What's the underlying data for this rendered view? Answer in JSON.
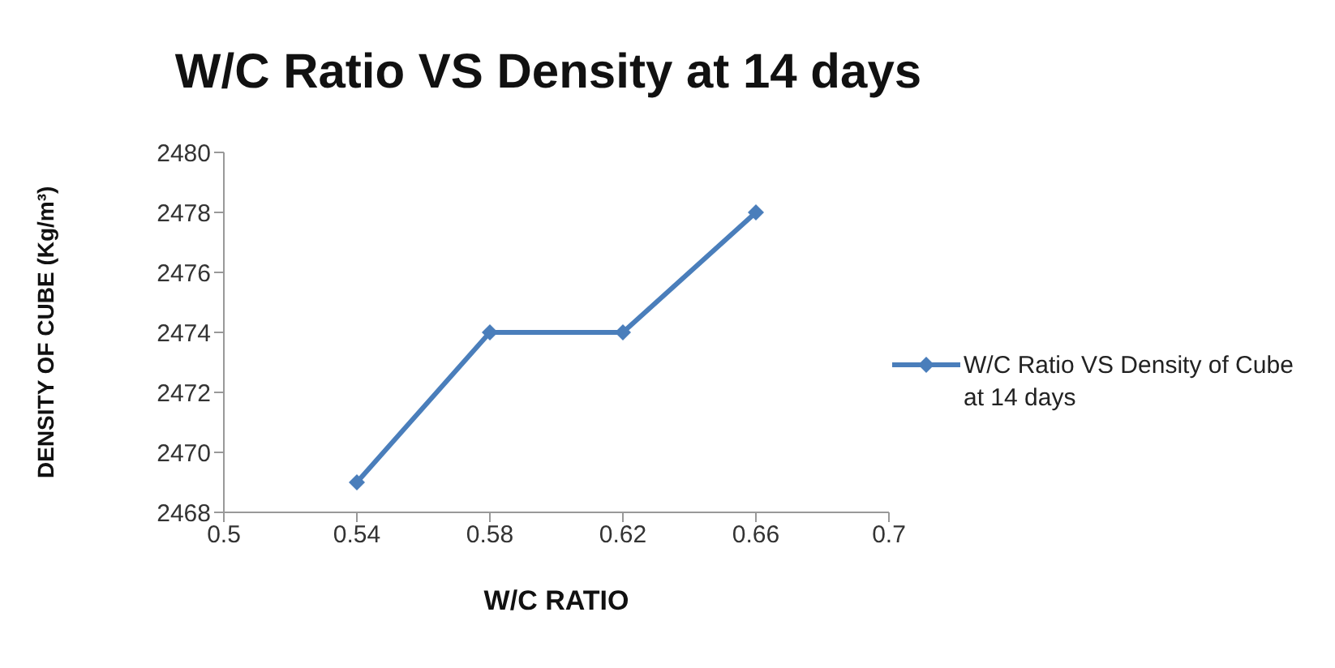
{
  "chart_data": {
    "type": "line",
    "title": "W/C Ratio VS Density at 14 days",
    "xlabel": "W/C RATIO",
    "ylabel": "DENSITY OF CUBE  (Kg/m³)",
    "series": [
      {
        "name": "W/C Ratio VS Density of Cube at 14 days",
        "color": "#4a7ebb",
        "x": [
          0.54,
          0.58,
          0.62,
          0.66
        ],
        "values": [
          2469,
          2474,
          2474,
          2478
        ]
      }
    ],
    "xlim": [
      0.5,
      0.7
    ],
    "xticks": [
      0.5,
      0.54,
      0.58,
      0.62,
      0.66,
      0.7
    ],
    "ylim": [
      2468,
      2480
    ],
    "yticks": [
      2468,
      2470,
      2472,
      2474,
      2476,
      2478,
      2480
    ],
    "grid": false,
    "legend": "right",
    "marker": "diamond",
    "line_style": "solid"
  }
}
